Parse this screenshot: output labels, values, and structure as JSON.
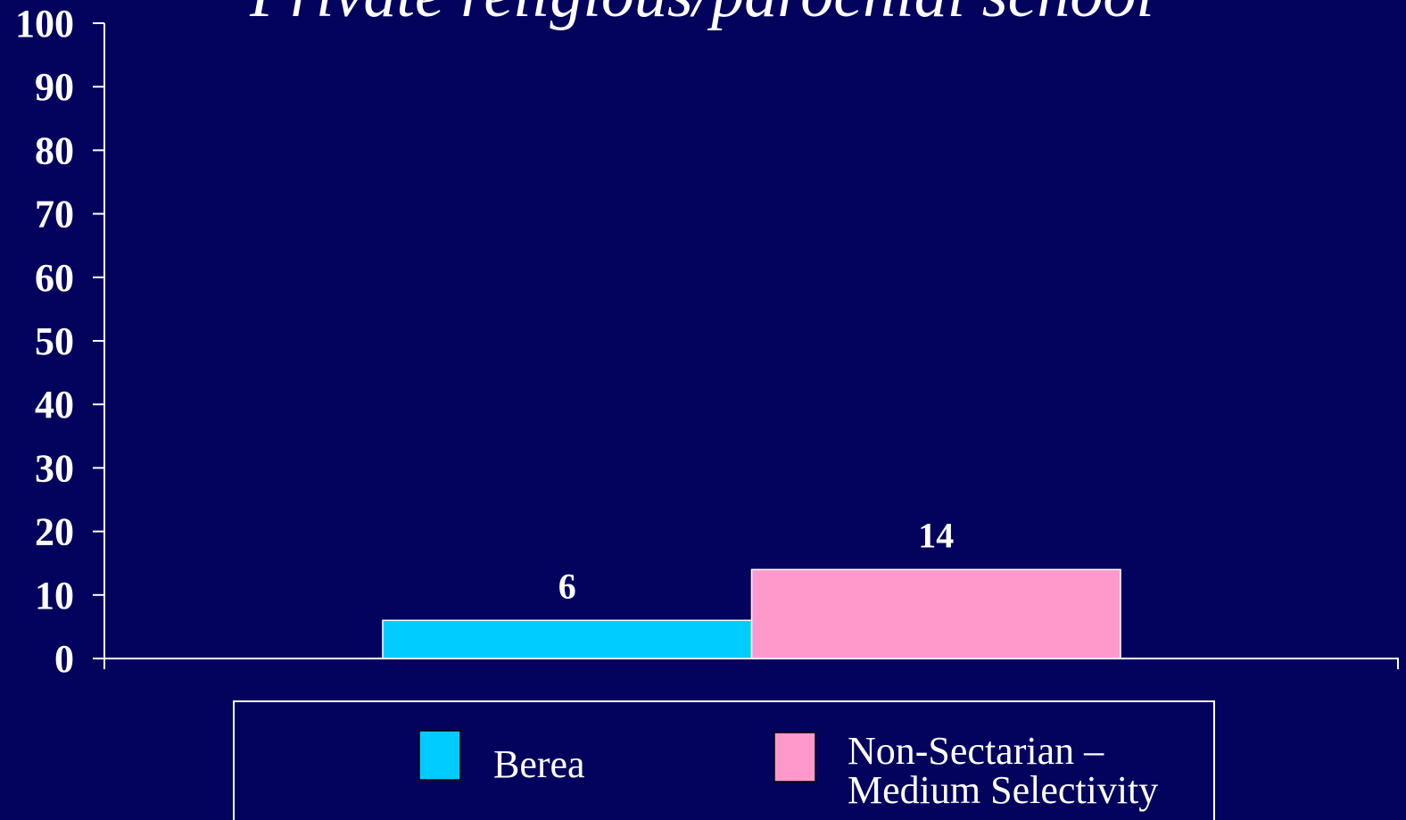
{
  "chart_data": {
    "type": "bar",
    "title": "Private religious/parochial school",
    "categories": [
      null
    ],
    "series": [
      {
        "name": "Berea",
        "color": "#00ccff",
        "values": [
          6
        ]
      },
      {
        "name": "Non-Sectarian – Medium Selectivity",
        "color": "#ff99cc",
        "values": [
          14
        ]
      }
    ],
    "ylim": [
      0,
      100
    ],
    "yticks": [
      0,
      10,
      20,
      30,
      40,
      50,
      60,
      70,
      80,
      90,
      100
    ],
    "grid": false,
    "data_labels": true,
    "legend": "bottom"
  }
}
